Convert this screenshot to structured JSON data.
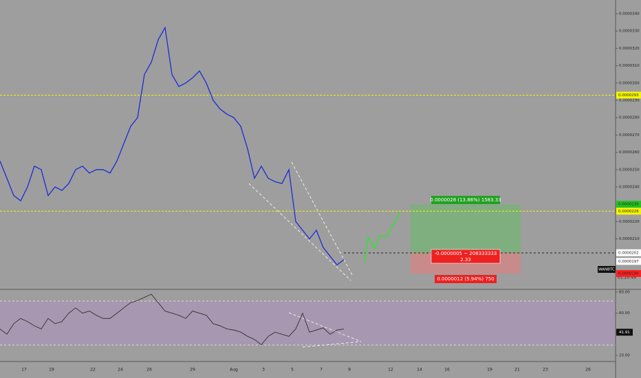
{
  "chart_data": {
    "type": "screenshot",
    "symbol": "WANBTC",
    "countdown": "01:20:49",
    "price_ticks": [
      {
        "value": 3.4e-05,
        "label": "0.0000340"
      },
      {
        "value": 3.3e-05,
        "label": "0.0000330"
      },
      {
        "value": 3.2e-05,
        "label": "0.0000320"
      },
      {
        "value": 3.1e-05,
        "label": "0.0000310"
      },
      {
        "value": 3e-05,
        "label": "0.0000300"
      },
      {
        "value": 2.9e-05,
        "label": "0.0000290"
      },
      {
        "value": 2.8e-05,
        "label": "0.0000280"
      },
      {
        "value": 2.7e-05,
        "label": "0.0000270"
      },
      {
        "value": 2.6e-05,
        "label": "0.0000260"
      },
      {
        "value": 2.5e-05,
        "label": "0.0000250"
      },
      {
        "value": 2.4e-05,
        "label": "0.0000240"
      },
      {
        "value": 2.2e-05,
        "label": "0.0000220"
      },
      {
        "value": 2.1e-05,
        "label": "0.0000210"
      }
    ],
    "price_labels": [
      {
        "value": 2.93e-05,
        "label": "0.0000293",
        "color": "#f5f500"
      },
      {
        "value": 2.3e-05,
        "label": "0.0000230",
        "color": "#22c322"
      },
      {
        "value": 2.26e-05,
        "label": "0.0000226",
        "color": "#f5f500"
      },
      {
        "value": 2.02e-05,
        "label": "0.0000202",
        "color": "#ffffff"
      },
      {
        "value": 1.97e-05,
        "label": "0.0000197",
        "color": "#ffffff"
      },
      {
        "value": 1.9e-05,
        "label": "0.0000190",
        "color": "#ff2020"
      }
    ],
    "levels": [
      2.93e-05,
      2.26e-05
    ],
    "dates": [
      "17",
      "19",
      "22",
      "24",
      "26",
      "29",
      "Aug",
      "3",
      "5",
      "7",
      "9",
      "12",
      "14",
      "16",
      "19",
      "21",
      "23",
      "26"
    ],
    "rsi_ticks": [
      {
        "value": 80,
        "label": "80.00"
      },
      {
        "value": 60,
        "label": "60.00"
      },
      {
        "value": 20,
        "label": "20.00"
      }
    ],
    "rsi_last": 41.91,
    "target_label": "0.0000028 (13.86%) 1583.33",
    "entry_label": "-0.0000005 ~ 208333333",
    "ratio_label": "2.33",
    "stop_label": "0.0000012 (5.94%) 750",
    "price": [
      2.55e-05,
      2.45e-05,
      2.35e-05,
      2.32e-05,
      2.4e-05,
      2.52e-05,
      2.5e-05,
      2.35e-05,
      2.4e-05,
      2.38e-05,
      2.42e-05,
      2.5e-05,
      2.52e-05,
      2.48e-05,
      2.5e-05,
      2.5e-05,
      2.48e-05,
      2.55e-05,
      2.65e-05,
      2.75e-05,
      2.8e-05,
      3.05e-05,
      3.12e-05,
      3.25e-05,
      3.32e-05,
      3.05e-05,
      2.98e-05,
      3e-05,
      3.03e-05,
      3.07e-05,
      3e-05,
      2.9e-05,
      2.85e-05,
      2.82e-05,
      2.8e-05,
      2.75e-05,
      2.62e-05,
      2.45e-05,
      2.52e-05,
      2.45e-05,
      2.43e-05,
      2.42e-05,
      2.5e-05,
      2.2e-05,
      2.15e-05,
      2.1e-05,
      2.15e-05,
      2.05e-05,
      2e-05,
      1.95e-05,
      1.98e-05
    ],
    "rsi": [
      45,
      40,
      50,
      55,
      52,
      48,
      45,
      55,
      50,
      52,
      60,
      65,
      60,
      62,
      58,
      55,
      55,
      60,
      65,
      70,
      72,
      75,
      78,
      70,
      62,
      60,
      58,
      55,
      62,
      60,
      58,
      50,
      48,
      45,
      44,
      42,
      38,
      35,
      30,
      38,
      42,
      40,
      38,
      45,
      60,
      42,
      44,
      46,
      40,
      44,
      45
    ]
  }
}
